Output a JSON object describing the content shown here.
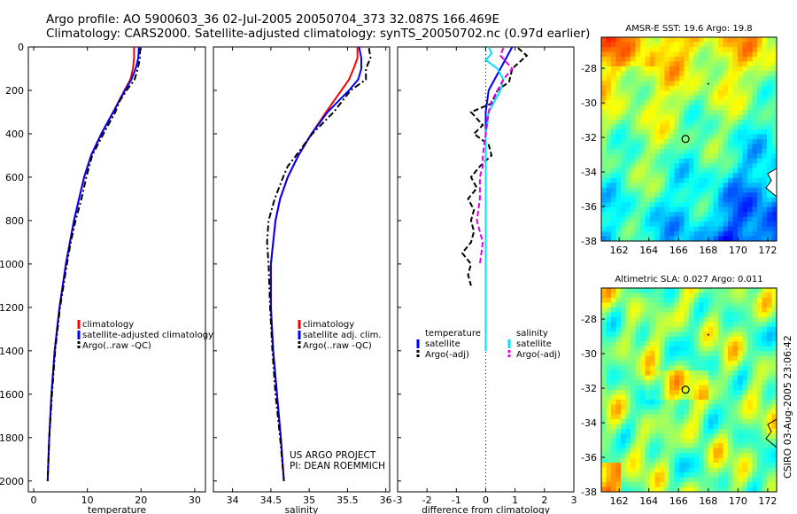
{
  "title": {
    "line1": "Argo profile: AO 5900603_36 02-Jul-2005 20050704_373 32.087S 166.469E",
    "line2": "Climatology: CARS2000. Satellite-adjusted climatology: synTS_20050702.nc (0.97d earlier)"
  },
  "credit": {
    "line1": "US ARGO PROJECT",
    "line2": "PI: DEAN ROEMMICH"
  },
  "side_stamp": "CSIRO 03-Aug-2005 23:06:42",
  "colors": {
    "climatology": "#ff0000",
    "satellite": "#0000ff",
    "argo": "#000000",
    "salinity_sat": "#00e0ff",
    "salinity_argo": "#e000e0"
  },
  "chart_data": [
    {
      "type": "line",
      "xlabel": "temperature",
      "ylabel": "",
      "xlim": [
        -1,
        32
      ],
      "ylim": [
        2050,
        0
      ],
      "xticks": [
        0,
        10,
        20,
        30
      ],
      "yticks": [
        0,
        200,
        400,
        600,
        800,
        1000,
        1200,
        1400,
        1600,
        1800,
        2000
      ],
      "legend_location": "lower-right",
      "series": [
        {
          "name": "climatology",
          "color": "#ff0000",
          "dash": "solid",
          "depth": [
            0,
            50,
            100,
            150,
            200,
            300,
            400,
            500,
            600,
            800,
            1000,
            1200,
            1400,
            1600,
            1800,
            2000
          ],
          "values": [
            18.7,
            18.7,
            18.5,
            18.0,
            16.9,
            14.8,
            12.6,
            10.7,
            9.4,
            7.5,
            6.0,
            4.8,
            3.9,
            3.3,
            2.9,
            2.6
          ]
        },
        {
          "name": "satellite-adjusted climatology",
          "color": "#0000ff",
          "dash": "solid",
          "depth": [
            0,
            50,
            100,
            150,
            200,
            300,
            400,
            500,
            600,
            800,
            1000,
            1200,
            1400,
            1600,
            1800,
            2000
          ],
          "values": [
            19.6,
            19.5,
            19.0,
            18.2,
            17.0,
            14.8,
            12.6,
            10.7,
            9.4,
            7.5,
            6.0,
            4.8,
            3.9,
            3.3,
            2.9,
            2.6
          ]
        },
        {
          "name": "Argo(..raw -QC)",
          "color": "#000000",
          "dash": "dashdot",
          "depth": [
            5,
            50,
            100,
            150,
            200,
            250,
            300,
            400,
            500,
            600,
            700,
            800,
            900,
            1000,
            1200,
            1400,
            1600,
            1800,
            2000
          ],
          "values": [
            19.8,
            19.8,
            19.4,
            18.8,
            17.3,
            16.0,
            15.2,
            13.0,
            10.9,
            9.8,
            8.9,
            7.8,
            6.9,
            6.2,
            4.9,
            4.0,
            3.4,
            2.9,
            2.6
          ]
        }
      ]
    },
    {
      "type": "line",
      "xlabel": "salinity",
      "ylabel": "",
      "xlim": [
        33.75,
        36.05
      ],
      "ylim": [
        2050,
        0
      ],
      "xticks": [
        34,
        34.5,
        35,
        35.5,
        36
      ],
      "legend_location": "lower-right",
      "series": [
        {
          "name": "climatology",
          "color": "#ff0000",
          "dash": "solid",
          "depth": [
            0,
            50,
            100,
            150,
            200,
            250,
            300,
            400,
            500,
            600,
            700,
            800,
            1000,
            1200,
            1400,
            1600,
            1800,
            2000
          ],
          "values": [
            35.63,
            35.63,
            35.58,
            35.52,
            35.42,
            35.32,
            35.22,
            35.03,
            34.86,
            34.72,
            34.62,
            34.56,
            34.5,
            34.5,
            34.53,
            34.58,
            34.63,
            34.67
          ]
        },
        {
          "name": "satellite adj. clim.",
          "color": "#0000ff",
          "dash": "solid",
          "depth": [
            0,
            50,
            100,
            150,
            200,
            250,
            300,
            400,
            500,
            600,
            700,
            800,
            1000,
            1200,
            1400,
            1600,
            1800,
            2000
          ],
          "values": [
            35.65,
            35.68,
            35.68,
            35.64,
            35.52,
            35.38,
            35.24,
            35.03,
            34.86,
            34.72,
            34.62,
            34.56,
            34.5,
            34.5,
            34.53,
            34.58,
            34.63,
            34.67
          ]
        },
        {
          "name": "Argo(..raw -QC)",
          "color": "#000000",
          "dash": "dashdot",
          "depth": [
            5,
            50,
            100,
            150,
            200,
            250,
            300,
            400,
            500,
            550,
            600,
            700,
            800,
            900,
            1000,
            1200,
            1400,
            1600,
            1800,
            2000
          ],
          "values": [
            35.78,
            35.8,
            35.74,
            35.74,
            35.54,
            35.43,
            35.32,
            35.04,
            34.83,
            34.72,
            34.66,
            34.55,
            34.47,
            34.45,
            34.47,
            34.49,
            34.52,
            34.56,
            34.62,
            34.67
          ]
        }
      ]
    },
    {
      "type": "line",
      "xlabel": "difference from climatology",
      "ylabel": "",
      "xlim": [
        -3,
        3
      ],
      "ylim": [
        2050,
        0
      ],
      "xticks": [
        -3,
        -2,
        -1,
        0,
        1,
        2,
        3
      ],
      "legend_location": "lower",
      "series": [
        {
          "name": "satellite",
          "group": "temperature",
          "color": "#0000ff",
          "dash": "solid",
          "depth": [
            0,
            100,
            200,
            300,
            400,
            500,
            600,
            700,
            800,
            1000,
            1200,
            1400
          ],
          "values": [
            0.9,
            0.5,
            0.1,
            0.0,
            0.0,
            0.0,
            0.0,
            0.0,
            0.0,
            0.0,
            0.0,
            0.0
          ]
        },
        {
          "name": "Argo(-adj)",
          "group": "temperature",
          "color": "#000000",
          "dash": "dashed",
          "depth": [
            5,
            40,
            100,
            160,
            200,
            260,
            300,
            360,
            400,
            450,
            500,
            550,
            600,
            650,
            700,
            750,
            800,
            850,
            900,
            950,
            1000,
            1050,
            1100
          ],
          "values": [
            1.1,
            1.4,
            0.9,
            0.8,
            0.4,
            0.2,
            -0.5,
            -0.1,
            -0.4,
            0.1,
            0.2,
            -0.2,
            -0.5,
            -0.3,
            -0.6,
            -0.4,
            -0.5,
            -0.4,
            -0.5,
            -0.8,
            -0.5,
            -0.6,
            -0.5
          ]
        },
        {
          "name": "satellite",
          "group": "salinity",
          "color": "#00e0ff",
          "dash": "solid",
          "depth": [
            0,
            30,
            60,
            100,
            150,
            200,
            250,
            300,
            400,
            500,
            600,
            800,
            1000,
            1200,
            1400
          ],
          "values": [
            0.1,
            0.2,
            0.0,
            0.4,
            0.6,
            0.5,
            0.3,
            0.1,
            0.0,
            0.0,
            0.0,
            0.0,
            0.0,
            0.0,
            0.0
          ]
        },
        {
          "name": "Argo(-adj)",
          "group": "salinity",
          "color": "#e000e0",
          "dash": "dashed",
          "depth": [
            5,
            40,
            100,
            150,
            200,
            250,
            300,
            400,
            500,
            550,
            600,
            700,
            800,
            900,
            1000
          ],
          "values": [
            0.6,
            0.5,
            0.9,
            0.6,
            0.4,
            0.2,
            0.1,
            0.0,
            -0.1,
            -0.1,
            -0.2,
            -0.2,
            -0.3,
            -0.1,
            -0.2
          ]
        }
      ],
      "legend_groups": [
        "temperature",
        "salinity"
      ]
    },
    {
      "type": "heatmap",
      "title": "AMSR-E SST: 19.6 Argo: 19.8",
      "xlim": [
        160.8,
        172.6
      ],
      "ylim": [
        -38,
        -26.2
      ],
      "xticks": [
        162,
        164,
        166,
        168,
        170,
        172
      ],
      "yticks": [
        -28,
        -30,
        -32,
        -34,
        -36,
        -38
      ],
      "marker": {
        "lon": 166.469,
        "lat": -32.087
      }
    },
    {
      "type": "heatmap",
      "title": "Altimetric SLA: 0.027 Argo: 0.011",
      "xlim": [
        160.8,
        172.6
      ],
      "ylim": [
        -38,
        -26.2
      ],
      "xticks": [
        162,
        164,
        166,
        168,
        170,
        172
      ],
      "yticks": [
        -28,
        -30,
        -32,
        -34,
        -36,
        -38
      ],
      "marker": {
        "lon": 166.469,
        "lat": -32.087
      }
    }
  ]
}
